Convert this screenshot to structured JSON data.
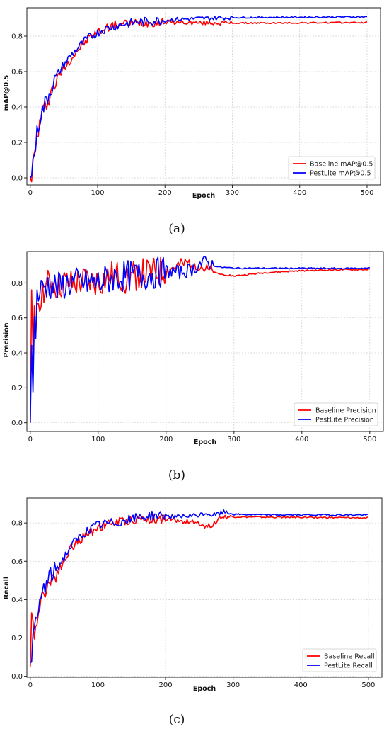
{
  "chart_data": [
    {
      "type": "line",
      "caption": "(a)",
      "xlabel": "Epoch",
      "ylabel": "mAP@0.5",
      "xlim": [
        -5,
        520
      ],
      "ylim": [
        -0.04,
        0.96
      ],
      "xticks": [
        0,
        100,
        200,
        300,
        400,
        500
      ],
      "yticks": [
        0.0,
        0.2,
        0.4,
        0.6,
        0.8
      ],
      "ytick_labels": [
        "0.0",
        "0.2",
        "0.4",
        "0.6",
        "0.8"
      ],
      "grid": true,
      "legend_position": "bottom-right",
      "series": [
        {
          "name": "Baseline mAP@0.5",
          "color": "#ff0000",
          "x": [
            0,
            2,
            5,
            8,
            10,
            15,
            20,
            30,
            40,
            50,
            60,
            70,
            80,
            90,
            100,
            110,
            120,
            140,
            160,
            180,
            200,
            220,
            250,
            300,
            350,
            400,
            450,
            500
          ],
          "y": [
            0.0,
            0.02,
            0.1,
            0.16,
            0.22,
            0.33,
            0.38,
            0.48,
            0.56,
            0.62,
            0.67,
            0.72,
            0.76,
            0.8,
            0.82,
            0.84,
            0.86,
            0.87,
            0.875,
            0.878,
            0.88,
            0.878,
            0.875,
            0.874,
            0.874,
            0.875,
            0.876,
            0.877
          ]
        },
        {
          "name": "PestLite mAP@0.5",
          "color": "#0000ff",
          "x": [
            0,
            2,
            5,
            8,
            10,
            15,
            20,
            30,
            40,
            50,
            60,
            70,
            80,
            90,
            100,
            110,
            120,
            140,
            160,
            180,
            200,
            220,
            250,
            300,
            350,
            400,
            450,
            500
          ],
          "y": [
            0.0,
            0.03,
            0.12,
            0.18,
            0.25,
            0.35,
            0.4,
            0.5,
            0.58,
            0.64,
            0.69,
            0.73,
            0.77,
            0.8,
            0.82,
            0.84,
            0.85,
            0.87,
            0.88,
            0.885,
            0.89,
            0.895,
            0.9,
            0.905,
            0.906,
            0.907,
            0.908,
            0.909
          ]
        }
      ]
    },
    {
      "type": "line",
      "caption": "(b)",
      "xlabel": "Epoch",
      "ylabel": "Precision",
      "xlim": [
        -5,
        520
      ],
      "ylim": [
        -0.05,
        0.98
      ],
      "xticks": [
        0,
        100,
        200,
        300,
        400,
        500
      ],
      "yticks": [
        0.0,
        0.2,
        0.4,
        0.6,
        0.8
      ],
      "ytick_labels": [
        "0.0",
        "0.2",
        "0.4",
        "0.6",
        "0.8"
      ],
      "grid": true,
      "legend_position": "bottom-right",
      "series": [
        {
          "name": "Baseline Precision",
          "color": "#ff0000",
          "x": [
            0,
            2,
            4,
            6,
            8,
            10,
            15,
            20,
            30,
            40,
            50,
            60,
            80,
            100,
            120,
            140,
            160,
            180,
            200,
            220,
            240,
            250,
            260,
            270,
            280,
            300,
            350,
            400,
            450,
            500
          ],
          "y": [
            0.0,
            0.68,
            0.35,
            0.6,
            0.5,
            0.7,
            0.73,
            0.77,
            0.8,
            0.78,
            0.8,
            0.79,
            0.81,
            0.8,
            0.84,
            0.83,
            0.85,
            0.85,
            0.87,
            0.9,
            0.92,
            0.9,
            0.87,
            0.86,
            0.85,
            0.84,
            0.86,
            0.87,
            0.875,
            0.877
          ]
        },
        {
          "name": "PestLite Precision",
          "color": "#0000ff",
          "x": [
            0,
            2,
            4,
            6,
            8,
            10,
            15,
            20,
            30,
            40,
            50,
            60,
            80,
            100,
            120,
            140,
            160,
            180,
            200,
            220,
            240,
            250,
            260,
            270,
            280,
            300,
            350,
            400,
            450,
            500
          ],
          "y": [
            0.0,
            0.5,
            0.12,
            0.6,
            0.55,
            0.72,
            0.75,
            0.78,
            0.79,
            0.77,
            0.79,
            0.8,
            0.8,
            0.8,
            0.83,
            0.84,
            0.84,
            0.85,
            0.87,
            0.86,
            0.88,
            0.91,
            0.92,
            0.9,
            0.89,
            0.885,
            0.884,
            0.884,
            0.883,
            0.885
          ]
        }
      ]
    },
    {
      "type": "line",
      "caption": "(c)",
      "xlabel": "Epoch",
      "ylabel": "Recall",
      "xlim": [
        -5,
        520
      ],
      "ylim": [
        -0.005,
        0.93
      ],
      "xticks": [
        0,
        100,
        200,
        300,
        400,
        500
      ],
      "yticks": [
        0.0,
        0.2,
        0.4,
        0.6,
        0.8
      ],
      "ytick_labels": [
        "0.0",
        "0.2",
        "0.4",
        "0.6",
        "0.8"
      ],
      "grid": true,
      "legend_position": "bottom-right",
      "series": [
        {
          "name": "Baseline Recall",
          "color": "#ff0000",
          "x": [
            0,
            2,
            5,
            8,
            10,
            15,
            20,
            30,
            40,
            50,
            60,
            80,
            100,
            120,
            140,
            160,
            180,
            200,
            220,
            250,
            260,
            270,
            280,
            300,
            350,
            400,
            450,
            500
          ],
          "y": [
            0.05,
            0.3,
            0.22,
            0.28,
            0.3,
            0.38,
            0.45,
            0.5,
            0.55,
            0.6,
            0.67,
            0.73,
            0.78,
            0.8,
            0.81,
            0.82,
            0.82,
            0.82,
            0.81,
            0.8,
            0.78,
            0.79,
            0.83,
            0.832,
            0.83,
            0.83,
            0.828,
            0.826
          ]
        },
        {
          "name": "PestLite Recall",
          "color": "#0000ff",
          "x": [
            0,
            2,
            5,
            8,
            10,
            15,
            20,
            30,
            40,
            50,
            60,
            80,
            100,
            120,
            140,
            160,
            180,
            200,
            220,
            250,
            260,
            270,
            280,
            290,
            300,
            350,
            400,
            450,
            500
          ],
          "y": [
            0.07,
            0.12,
            0.22,
            0.26,
            0.3,
            0.4,
            0.46,
            0.52,
            0.57,
            0.62,
            0.68,
            0.75,
            0.79,
            0.8,
            0.81,
            0.83,
            0.84,
            0.84,
            0.83,
            0.84,
            0.85,
            0.84,
            0.85,
            0.86,
            0.845,
            0.842,
            0.842,
            0.842,
            0.842
          ]
        }
      ]
    }
  ]
}
